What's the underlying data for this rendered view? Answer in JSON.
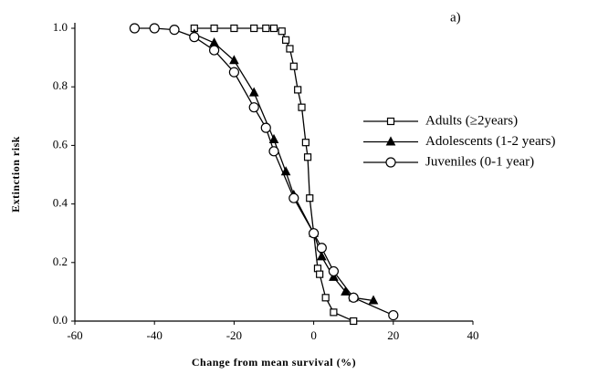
{
  "chart_data": {
    "type": "line",
    "annotation": "a)",
    "x_label": "Change from mean survival (%)",
    "y_label": "Extinction risk",
    "xlim": [
      -60,
      40
    ],
    "xticks": [
      -60,
      -40,
      -20,
      0,
      20,
      40
    ],
    "ylim": [
      0,
      1
    ],
    "yticks": [
      {
        "value": 0,
        "label": "0.0"
      },
      {
        "value": 0.2,
        "label": "0.2"
      },
      {
        "value": 0.4,
        "label": "0.4"
      },
      {
        "value": 0.6,
        "label": "0.6"
      },
      {
        "value": 0.8,
        "label": "0.8"
      },
      {
        "value": 1,
        "label": "1.0"
      }
    ],
    "legend_position": "right",
    "series": [
      {
        "name": "Adults (≥2years)",
        "marker": "square",
        "color": "#000000",
        "x": [
          -30,
          -25,
          -20,
          -15,
          -12,
          -10,
          -8,
          -7,
          -6,
          -5,
          -4,
          -3,
          -2,
          -1.5,
          -1,
          0,
          1,
          1.5,
          3,
          5,
          10
        ],
        "values": [
          1,
          1,
          1,
          1,
          1,
          1,
          0.99,
          0.96,
          0.93,
          0.87,
          0.79,
          0.73,
          0.61,
          0.56,
          0.42,
          0.3,
          0.18,
          0.16,
          0.08,
          0.03,
          0.0
        ]
      },
      {
        "name": "Adolescents (1-2 years)",
        "marker": "triangle",
        "color": "#000000",
        "x": [
          -30,
          -25,
          -20,
          -15,
          -10,
          -7,
          -5,
          0,
          2,
          5,
          8,
          10,
          15
        ],
        "values": [
          0.98,
          0.95,
          0.89,
          0.78,
          0.62,
          0.51,
          0.43,
          0.3,
          0.22,
          0.15,
          0.1,
          0.08,
          0.07
        ]
      },
      {
        "name": "Juveniles (0-1 year)",
        "marker": "circle",
        "color": "#000000",
        "x": [
          -45,
          -40,
          -35,
          -30,
          -25,
          -20,
          -15,
          -12,
          -10,
          -5,
          0,
          2,
          5,
          10,
          20
        ],
        "values": [
          1.0,
          1.0,
          0.995,
          0.97,
          0.925,
          0.85,
          0.73,
          0.66,
          0.58,
          0.42,
          0.3,
          0.25,
          0.17,
          0.08,
          0.02
        ]
      }
    ]
  }
}
